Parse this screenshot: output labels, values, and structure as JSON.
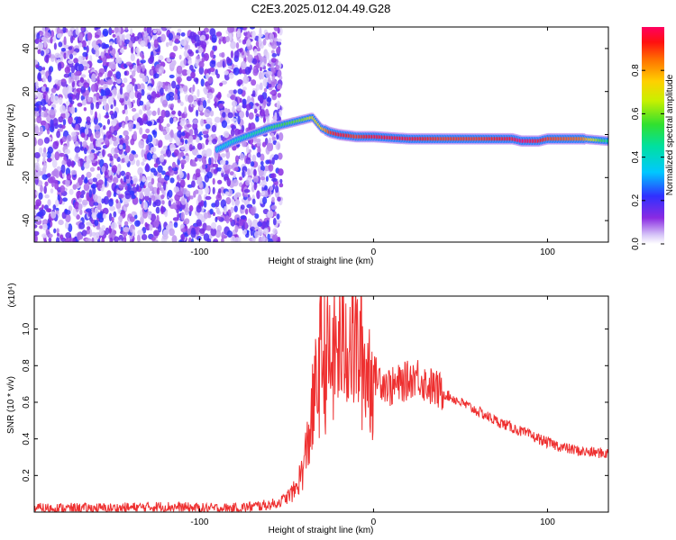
{
  "title": "C2E3.2025.012.04.49.G28",
  "chart_data": [
    {
      "type": "heatmap",
      "xlabel": "Height of straight line (km)",
      "ylabel": "Frequency (Hz)",
      "xlim": [
        -195,
        135
      ],
      "ylim": [
        -50,
        50
      ],
      "xticks": [
        -100,
        0,
        100
      ],
      "yticks": [
        -40,
        -20,
        0,
        20,
        40
      ],
      "colorbar": {
        "label": "Normalized spectral amplitude",
        "range": [
          0,
          1
        ],
        "ticks": [
          "0.0",
          "0.2",
          "0.4",
          "0.6",
          "0.8"
        ],
        "colormap": "rainbow (white → violet → blue → cyan → green → yellow → red → magenta)"
      },
      "noise_region_x": [
        -195,
        -53
      ],
      "ridge": {
        "x": [
          -90,
          -80,
          -70,
          -60,
          -50,
          -40,
          -35,
          -30,
          -25,
          -20,
          -10,
          0,
          20,
          40,
          60,
          80,
          85,
          95,
          100,
          120,
          135
        ],
        "frequency": [
          -7,
          -3,
          0,
          3,
          5,
          7,
          8,
          3,
          1,
          0,
          -1,
          -1,
          -2,
          -2,
          -2,
          -2,
          -3,
          -3,
          -2,
          -2,
          -3
        ],
        "amplitude": [
          0.35,
          0.4,
          0.45,
          0.5,
          0.55,
          0.6,
          0.7,
          0.75,
          0.9,
          0.95,
          0.9,
          0.95,
          0.95,
          0.9,
          0.9,
          0.95,
          1.0,
          0.95,
          0.9,
          0.85,
          0.45
        ]
      }
    },
    {
      "type": "line",
      "xlabel": "Height of straight line (km)",
      "ylabel": "SNR (10 * v/v)",
      "y_multiplier": "(x10⁴)",
      "xlim": [
        -195,
        135
      ],
      "ylim": [
        0,
        1.18
      ],
      "xticks": [
        -100,
        0,
        100
      ],
      "yticks": [
        "0.2",
        "0.4",
        "0.6",
        "0.8",
        "1.0"
      ],
      "color": "#ee3030",
      "series": [
        {
          "x": [
            -195,
            -150,
            -120,
            -100,
            -80,
            -60,
            -55,
            -50,
            -45,
            -40,
            -35,
            -30,
            -25,
            -20,
            -15,
            -10,
            -5,
            0,
            5,
            10,
            15,
            20,
            25,
            30,
            40,
            50,
            60,
            70,
            80,
            90,
            100,
            110,
            120,
            135
          ],
          "values": [
            0.02,
            0.02,
            0.03,
            0.02,
            0.02,
            0.04,
            0.05,
            0.08,
            0.12,
            0.25,
            0.55,
            0.85,
            0.8,
            0.9,
            0.95,
            0.9,
            0.8,
            0.75,
            0.72,
            0.68,
            0.7,
            0.72,
            0.75,
            0.7,
            0.65,
            0.6,
            0.55,
            0.5,
            0.46,
            0.42,
            0.38,
            0.35,
            0.33,
            0.32
          ]
        }
      ]
    }
  ]
}
